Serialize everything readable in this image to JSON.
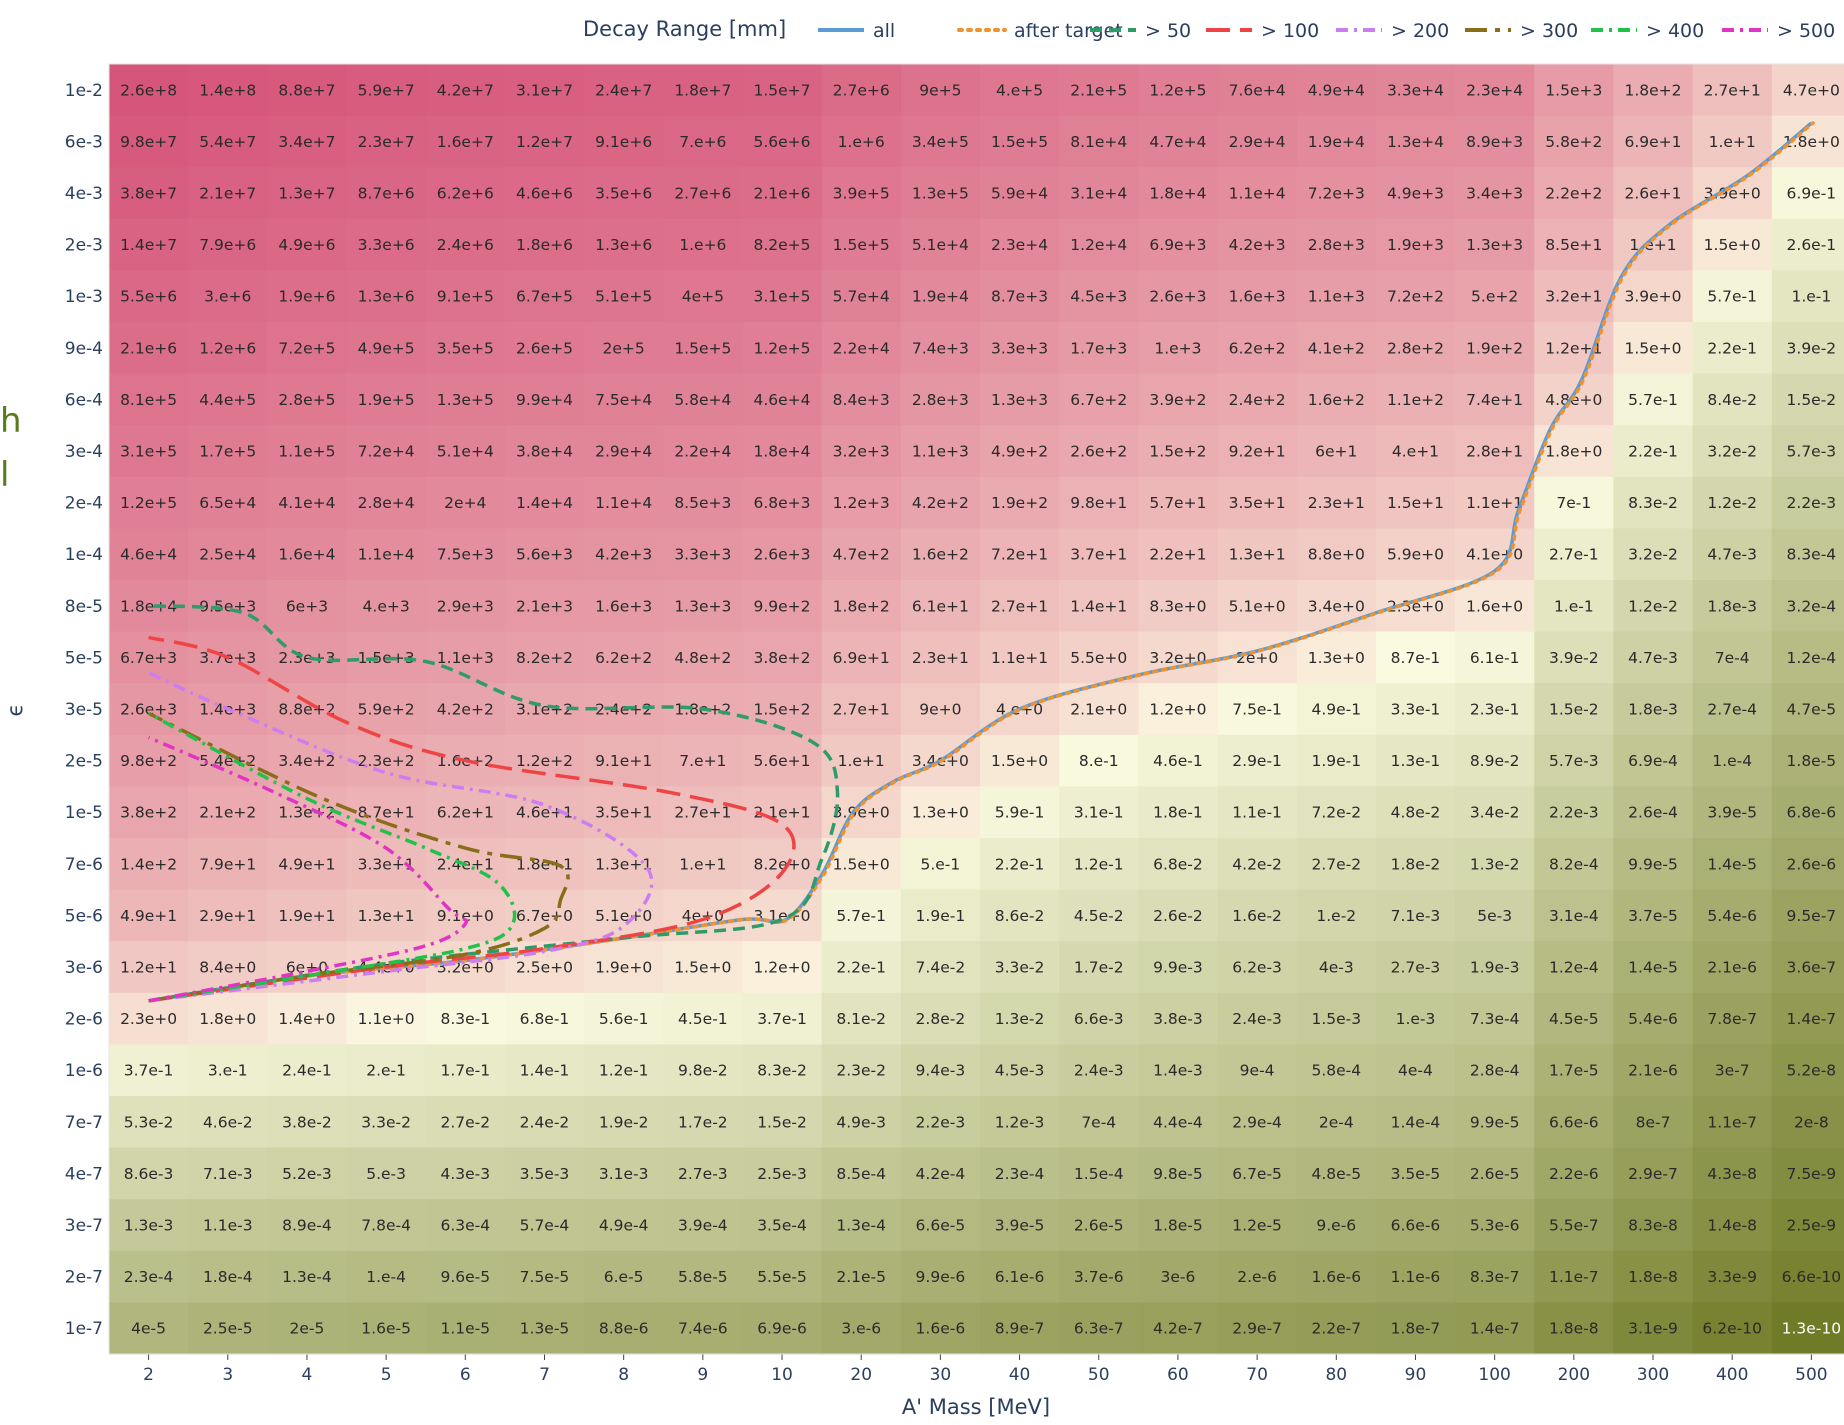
{
  "chart_data": {
    "type": "heatmap",
    "xlabel": "A' Mass [MeV]",
    "ylabel": "ϵ",
    "x": [
      "2",
      "3",
      "4",
      "5",
      "6",
      "7",
      "8",
      "9",
      "10",
      "20",
      "30",
      "40",
      "50",
      "60",
      "70",
      "80",
      "90",
      "100",
      "200",
      "300",
      "400",
      "500"
    ],
    "y": [
      "1e-2",
      "6e-3",
      "4e-3",
      "2e-3",
      "1e-3",
      "9e-4",
      "6e-4",
      "3e-4",
      "2e-4",
      "1e-4",
      "8e-5",
      "5e-5",
      "3e-5",
      "2e-5",
      "1e-5",
      "7e-6",
      "5e-6",
      "3e-6",
      "2e-6",
      "1e-6",
      "7e-7",
      "4e-7",
      "3e-7",
      "2e-7",
      "1e-7"
    ],
    "z": [
      [
        "2.6e+8",
        "1.4e+8",
        "8.8e+7",
        "5.9e+7",
        "4.2e+7",
        "3.1e+7",
        "2.4e+7",
        "1.8e+7",
        "1.5e+7",
        "2.7e+6",
        "9e+5",
        "4.e+5",
        "2.1e+5",
        "1.2e+5",
        "7.6e+4",
        "4.9e+4",
        "3.3e+4",
        "2.3e+4",
        "1.5e+3",
        "1.8e+2",
        "2.7e+1",
        "4.7e+0"
      ],
      [
        "9.8e+7",
        "5.4e+7",
        "3.4e+7",
        "2.3e+7",
        "1.6e+7",
        "1.2e+7",
        "9.1e+6",
        "7.e+6",
        "5.6e+6",
        "1.e+6",
        "3.4e+5",
        "1.5e+5",
        "8.1e+4",
        "4.7e+4",
        "2.9e+4",
        "1.9e+4",
        "1.3e+4",
        "8.9e+3",
        "5.8e+2",
        "6.9e+1",
        "1.e+1",
        "1.8e+0"
      ],
      [
        "3.8e+7",
        "2.1e+7",
        "1.3e+7",
        "8.7e+6",
        "6.2e+6",
        "4.6e+6",
        "3.5e+6",
        "2.7e+6",
        "2.1e+6",
        "3.9e+5",
        "1.3e+5",
        "5.9e+4",
        "3.1e+4",
        "1.8e+4",
        "1.1e+4",
        "7.2e+3",
        "4.9e+3",
        "3.4e+3",
        "2.2e+2",
        "2.6e+1",
        "3.9e+0",
        "6.9e-1"
      ],
      [
        "1.4e+7",
        "7.9e+6",
        "4.9e+6",
        "3.3e+6",
        "2.4e+6",
        "1.8e+6",
        "1.3e+6",
        "1.e+6",
        "8.2e+5",
        "1.5e+5",
        "5.1e+4",
        "2.3e+4",
        "1.2e+4",
        "6.9e+3",
        "4.2e+3",
        "2.8e+3",
        "1.9e+3",
        "1.3e+3",
        "8.5e+1",
        "1.e+1",
        "1.5e+0",
        "2.6e-1"
      ],
      [
        "5.5e+6",
        "3.e+6",
        "1.9e+6",
        "1.3e+6",
        "9.1e+5",
        "6.7e+5",
        "5.1e+5",
        "4e+5",
        "3.1e+5",
        "5.7e+4",
        "1.9e+4",
        "8.7e+3",
        "4.5e+3",
        "2.6e+3",
        "1.6e+3",
        "1.1e+3",
        "7.2e+2",
        "5.e+2",
        "3.2e+1",
        "3.9e+0",
        "5.7e-1",
        "1.e-1"
      ],
      [
        "2.1e+6",
        "1.2e+6",
        "7.2e+5",
        "4.9e+5",
        "3.5e+5",
        "2.6e+5",
        "2e+5",
        "1.5e+5",
        "1.2e+5",
        "2.2e+4",
        "7.4e+3",
        "3.3e+3",
        "1.7e+3",
        "1.e+3",
        "6.2e+2",
        "4.1e+2",
        "2.8e+2",
        "1.9e+2",
        "1.2e+1",
        "1.5e+0",
        "2.2e-1",
        "3.9e-2"
      ],
      [
        "8.1e+5",
        "4.4e+5",
        "2.8e+5",
        "1.9e+5",
        "1.3e+5",
        "9.9e+4",
        "7.5e+4",
        "5.8e+4",
        "4.6e+4",
        "8.4e+3",
        "2.8e+3",
        "1.3e+3",
        "6.7e+2",
        "3.9e+2",
        "2.4e+2",
        "1.6e+2",
        "1.1e+2",
        "7.4e+1",
        "4.8e+0",
        "5.7e-1",
        "8.4e-2",
        "1.5e-2"
      ],
      [
        "3.1e+5",
        "1.7e+5",
        "1.1e+5",
        "7.2e+4",
        "5.1e+4",
        "3.8e+4",
        "2.9e+4",
        "2.2e+4",
        "1.8e+4",
        "3.2e+3",
        "1.1e+3",
        "4.9e+2",
        "2.6e+2",
        "1.5e+2",
        "9.2e+1",
        "6e+1",
        "4.e+1",
        "2.8e+1",
        "1.8e+0",
        "2.2e-1",
        "3.2e-2",
        "5.7e-3"
      ],
      [
        "1.2e+5",
        "6.5e+4",
        "4.1e+4",
        "2.8e+4",
        "2e+4",
        "1.4e+4",
        "1.1e+4",
        "8.5e+3",
        "6.8e+3",
        "1.2e+3",
        "4.2e+2",
        "1.9e+2",
        "9.8e+1",
        "5.7e+1",
        "3.5e+1",
        "2.3e+1",
        "1.5e+1",
        "1.1e+1",
        "7e-1",
        "8.3e-2",
        "1.2e-2",
        "2.2e-3"
      ],
      [
        "4.6e+4",
        "2.5e+4",
        "1.6e+4",
        "1.1e+4",
        "7.5e+3",
        "5.6e+3",
        "4.2e+3",
        "3.3e+3",
        "2.6e+3",
        "4.7e+2",
        "1.6e+2",
        "7.2e+1",
        "3.7e+1",
        "2.2e+1",
        "1.3e+1",
        "8.8e+0",
        "5.9e+0",
        "4.1e+0",
        "2.7e-1",
        "3.2e-2",
        "4.7e-3",
        "8.3e-4"
      ],
      [
        "1.8e+4",
        "9.5e+3",
        "6e+3",
        "4.e+3",
        "2.9e+3",
        "2.1e+3",
        "1.6e+3",
        "1.3e+3",
        "9.9e+2",
        "1.8e+2",
        "6.1e+1",
        "2.7e+1",
        "1.4e+1",
        "8.3e+0",
        "5.1e+0",
        "3.4e+0",
        "2.3e+0",
        "1.6e+0",
        "1.e-1",
        "1.2e-2",
        "1.8e-3",
        "3.2e-4"
      ],
      [
        "6.7e+3",
        "3.7e+3",
        "2.3e+3",
        "1.5e+3",
        "1.1e+3",
        "8.2e+2",
        "6.2e+2",
        "4.8e+2",
        "3.8e+2",
        "6.9e+1",
        "2.3e+1",
        "1.1e+1",
        "5.5e+0",
        "3.2e+0",
        "2e+0",
        "1.3e+0",
        "8.7e-1",
        "6.1e-1",
        "3.9e-2",
        "4.7e-3",
        "7e-4",
        "1.2e-4"
      ],
      [
        "2.6e+3",
        "1.4e+3",
        "8.8e+2",
        "5.9e+2",
        "4.2e+2",
        "3.1e+2",
        "2.4e+2",
        "1.8e+2",
        "1.5e+2",
        "2.7e+1",
        "9e+0",
        "4.e+0",
        "2.1e+0",
        "1.2e+0",
        "7.5e-1",
        "4.9e-1",
        "3.3e-1",
        "2.3e-1",
        "1.5e-2",
        "1.8e-3",
        "2.7e-4",
        "4.7e-5"
      ],
      [
        "9.8e+2",
        "5.4e+2",
        "3.4e+2",
        "2.3e+2",
        "1.6e+2",
        "1.2e+2",
        "9.1e+1",
        "7.e+1",
        "5.6e+1",
        "1.e+1",
        "3.4e+0",
        "1.5e+0",
        "8.e-1",
        "4.6e-1",
        "2.9e-1",
        "1.9e-1",
        "1.3e-1",
        "8.9e-2",
        "5.7e-3",
        "6.9e-4",
        "1.e-4",
        "1.8e-5"
      ],
      [
        "3.8e+2",
        "2.1e+2",
        "1.3e+2",
        "8.7e+1",
        "6.2e+1",
        "4.6e+1",
        "3.5e+1",
        "2.7e+1",
        "2.1e+1",
        "3.9e+0",
        "1.3e+0",
        "5.9e-1",
        "3.1e-1",
        "1.8e-1",
        "1.1e-1",
        "7.2e-2",
        "4.8e-2",
        "3.4e-2",
        "2.2e-3",
        "2.6e-4",
        "3.9e-5",
        "6.8e-6"
      ],
      [
        "1.4e+2",
        "7.9e+1",
        "4.9e+1",
        "3.3e+1",
        "2.4e+1",
        "1.8e+1",
        "1.3e+1",
        "1.e+1",
        "8.2e+0",
        "1.5e+0",
        "5.e-1",
        "2.2e-1",
        "1.2e-1",
        "6.8e-2",
        "4.2e-2",
        "2.7e-2",
        "1.8e-2",
        "1.3e-2",
        "8.2e-4",
        "9.9e-5",
        "1.4e-5",
        "2.6e-6"
      ],
      [
        "4.9e+1",
        "2.9e+1",
        "1.9e+1",
        "1.3e+1",
        "9.1e+0",
        "6.7e+0",
        "5.1e+0",
        "4e+0",
        "3.1e+0",
        "5.7e-1",
        "1.9e-1",
        "8.6e-2",
        "4.5e-2",
        "2.6e-2",
        "1.6e-2",
        "1.e-2",
        "7.1e-3",
        "5e-3",
        "3.1e-4",
        "3.7e-5",
        "5.4e-6",
        "9.5e-7"
      ],
      [
        "1.2e+1",
        "8.4e+0",
        "6e+0",
        "4.4e+0",
        "3.2e+0",
        "2.5e+0",
        "1.9e+0",
        "1.5e+0",
        "1.2e+0",
        "2.2e-1",
        "7.4e-2",
        "3.3e-2",
        "1.7e-2",
        "9.9e-3",
        "6.2e-3",
        "4e-3",
        "2.7e-3",
        "1.9e-3",
        "1.2e-4",
        "1.4e-5",
        "2.1e-6",
        "3.6e-7"
      ],
      [
        "2.3e+0",
        "1.8e+0",
        "1.4e+0",
        "1.1e+0",
        "8.3e-1",
        "6.8e-1",
        "5.6e-1",
        "4.5e-1",
        "3.7e-1",
        "8.1e-2",
        "2.8e-2",
        "1.3e-2",
        "6.6e-3",
        "3.8e-3",
        "2.4e-3",
        "1.5e-3",
        "1.e-3",
        "7.3e-4",
        "4.5e-5",
        "5.4e-6",
        "7.8e-7",
        "1.4e-7"
      ],
      [
        "3.7e-1",
        "3.e-1",
        "2.4e-1",
        "2.e-1",
        "1.7e-1",
        "1.4e-1",
        "1.2e-1",
        "9.8e-2",
        "8.3e-2",
        "2.3e-2",
        "9.4e-3",
        "4.5e-3",
        "2.4e-3",
        "1.4e-3",
        "9e-4",
        "5.8e-4",
        "4e-4",
        "2.8e-4",
        "1.7e-5",
        "2.1e-6",
        "3e-7",
        "5.2e-8"
      ],
      [
        "5.3e-2",
        "4.6e-2",
        "3.8e-2",
        "3.3e-2",
        "2.7e-2",
        "2.4e-2",
        "1.9e-2",
        "1.7e-2",
        "1.5e-2",
        "4.9e-3",
        "2.2e-3",
        "1.2e-3",
        "7e-4",
        "4.4e-4",
        "2.9e-4",
        "2e-4",
        "1.4e-4",
        "9.9e-5",
        "6.6e-6",
        "8e-7",
        "1.1e-7",
        "2e-8"
      ],
      [
        "8.6e-3",
        "7.1e-3",
        "5.2e-3",
        "5.e-3",
        "4.3e-3",
        "3.5e-3",
        "3.1e-3",
        "2.7e-3",
        "2.5e-3",
        "8.5e-4",
        "4.2e-4",
        "2.3e-4",
        "1.5e-4",
        "9.8e-5",
        "6.7e-5",
        "4.8e-5",
        "3.5e-5",
        "2.6e-5",
        "2.2e-6",
        "2.9e-7",
        "4.3e-8",
        "7.5e-9"
      ],
      [
        "1.3e-3",
        "1.1e-3",
        "8.9e-4",
        "7.8e-4",
        "6.3e-4",
        "5.7e-4",
        "4.9e-4",
        "3.9e-4",
        "3.5e-4",
        "1.3e-4",
        "6.6e-5",
        "3.9e-5",
        "2.6e-5",
        "1.8e-5",
        "1.2e-5",
        "9.e-6",
        "6.6e-6",
        "5.3e-6",
        "5.5e-7",
        "8.3e-8",
        "1.4e-8",
        "2.5e-9"
      ],
      [
        "2.3e-4",
        "1.8e-4",
        "1.3e-4",
        "1.e-4",
        "9.6e-5",
        "7.5e-5",
        "6.e-5",
        "5.8e-5",
        "5.5e-5",
        "2.1e-5",
        "9.9e-6",
        "6.1e-6",
        "3.7e-6",
        "3e-6",
        "2.e-6",
        "1.6e-6",
        "1.1e-6",
        "8.3e-7",
        "1.1e-7",
        "1.8e-8",
        "3.3e-9",
        "6.6e-10"
      ],
      [
        "4e-5",
        "2.5e-5",
        "2e-5",
        "1.6e-5",
        "1.1e-5",
        "1.3e-5",
        "8.8e-6",
        "7.4e-6",
        "6.9e-6",
        "3.e-6",
        "1.6e-6",
        "8.9e-7",
        "6.3e-7",
        "4.2e-7",
        "2.9e-7",
        "2.2e-7",
        "1.8e-7",
        "1.4e-7",
        "1.8e-8",
        "3.1e-9",
        "6.2e-10",
        "1.3e-10"
      ]
    ],
    "colorscale": {
      "high": "#d6557a",
      "mid": "#fdfde4",
      "low": "#6f7a25"
    },
    "legend": {
      "title": "Decay Range [mm]",
      "placement": "top",
      "entries": [
        {
          "name": "all",
          "color": "#5b9bd5",
          "dash": "solid"
        },
        {
          "name": "after target",
          "color": "#f0932f",
          "dash": "dot"
        },
        {
          "name": "> 50",
          "color": "#2e9c6a",
          "dash": "dash"
        },
        {
          "name": "> 100",
          "color": "#ef4444",
          "dash": "longdash"
        },
        {
          "name": "> 200",
          "color": "#cc7ef0",
          "dash": "dashdot"
        },
        {
          "name": "> 300",
          "color": "#8a6d1a",
          "dash": "longdashdot"
        },
        {
          "name": "> 400",
          "color": "#22c24a",
          "dash": "dashdot"
        },
        {
          "name": "> 500",
          "color": "#e034c4",
          "dash": "dashdot"
        }
      ]
    },
    "contours": [
      {
        "name": "all",
        "points": [
          [
            2,
            2.3e-06
          ],
          [
            4,
            2.8e-06
          ],
          [
            6,
            3.2e-06
          ],
          [
            8,
            4e-06
          ],
          [
            9.5,
            4.8e-06
          ],
          [
            10.5,
            4.8e-06
          ],
          [
            15,
            6.5e-06
          ],
          [
            19,
            1e-05
          ],
          [
            24,
            1.5e-05
          ],
          [
            30,
            2e-05
          ],
          [
            40,
            3e-05
          ],
          [
            55,
            4.2e-05
          ],
          [
            70,
            5.3e-05
          ],
          [
            85,
            7.5e-05
          ],
          [
            100,
            9.3e-05
          ],
          [
            130,
            0.00018
          ],
          [
            170,
            0.0004
          ],
          [
            210,
            0.0007
          ],
          [
            260,
            0.0013
          ],
          [
            320,
            0.0026
          ],
          [
            420,
            0.0046
          ],
          [
            500,
            0.0072
          ]
        ]
      },
      {
        "name": "after target",
        "points": [
          [
            2,
            2.3e-06
          ],
          [
            4,
            2.8e-06
          ],
          [
            6,
            3.2e-06
          ],
          [
            8,
            4e-06
          ],
          [
            9.5,
            4.8e-06
          ],
          [
            10.5,
            4.8e-06
          ],
          [
            15,
            6.5e-06
          ],
          [
            19,
            1e-05
          ],
          [
            24,
            1.5e-05
          ],
          [
            30,
            2e-05
          ],
          [
            40,
            3e-05
          ],
          [
            55,
            4.2e-05
          ],
          [
            70,
            5.3e-05
          ],
          [
            85,
            7.5e-05
          ],
          [
            100,
            9.3e-05
          ],
          [
            130,
            0.00018
          ],
          [
            170,
            0.0004
          ],
          [
            210,
            0.0007
          ],
          [
            260,
            0.0013
          ],
          [
            320,
            0.0026
          ],
          [
            420,
            0.0046
          ],
          [
            500,
            0.0072
          ]
        ]
      },
      {
        "name": "> 50",
        "points": [
          [
            2,
            2.3e-06
          ],
          [
            5,
            3.1e-06
          ],
          [
            8,
            4e-06
          ],
          [
            10,
            4.8e-06
          ],
          [
            15,
            7.2e-06
          ],
          [
            17,
            1.3e-05
          ],
          [
            14,
            2.3e-05
          ],
          [
            9,
            3e-05
          ],
          [
            7,
            3.1e-05
          ],
          [
            5.5,
            4.8e-05
          ],
          [
            4,
            5e-05
          ],
          [
            3.2,
            7.5e-05
          ],
          [
            2,
            8e-05
          ]
        ]
      },
      {
        "name": "> 100",
        "points": [
          [
            2,
            2.3e-06
          ],
          [
            5,
            3e-06
          ],
          [
            7,
            3.6e-06
          ],
          [
            9,
            4.8e-06
          ],
          [
            10,
            6.6e-06
          ],
          [
            10,
            9.2e-06
          ],
          [
            8.6,
            1.3e-05
          ],
          [
            6,
            2e-05
          ],
          [
            4.5,
            2.7e-05
          ],
          [
            3,
            5e-05
          ],
          [
            2,
            6e-05
          ]
        ]
      },
      {
        "name": "> 200",
        "points": [
          [
            2,
            2.3e-06
          ],
          [
            5,
            2.9e-06
          ],
          [
            7,
            3.5e-06
          ],
          [
            8,
            4.5e-06
          ],
          [
            8.3,
            6.8e-06
          ],
          [
            7,
            1.1e-05
          ],
          [
            5,
            1.7e-05
          ],
          [
            3,
            3e-05
          ],
          [
            2,
            4.3e-05
          ]
        ]
      },
      {
        "name": "> 300",
        "points": [
          [
            2,
            2.3e-06
          ],
          [
            4,
            2.8e-06
          ],
          [
            6,
            3.4e-06
          ],
          [
            7,
            4.4e-06
          ],
          [
            7.2,
            5.5e-06
          ],
          [
            7.2,
            6.9e-06
          ],
          [
            6,
            7.8e-06
          ],
          [
            4.2,
            1.2e-05
          ],
          [
            2,
            2.9e-05
          ]
        ]
      },
      {
        "name": "> 400",
        "points": [
          [
            2,
            2.3e-06
          ],
          [
            4,
            2.8e-06
          ],
          [
            6,
            3.6e-06
          ],
          [
            6.6,
            4.6e-06
          ],
          [
            6.4,
            6.2e-06
          ],
          [
            5.5,
            7.8e-06
          ],
          [
            4,
            1.2e-05
          ],
          [
            2,
            2.9e-05
          ]
        ]
      },
      {
        "name": "> 500",
        "points": [
          [
            2,
            2.3e-06
          ],
          [
            4,
            2.9e-06
          ],
          [
            5.5,
            3.7e-06
          ],
          [
            6,
            4.6e-06
          ],
          [
            5.8,
            5.2e-06
          ],
          [
            5,
            7.8e-06
          ],
          [
            3.6,
            1.3e-05
          ],
          [
            2,
            2.4e-05
          ]
        ]
      }
    ],
    "cutoff_label": "h\nl"
  }
}
